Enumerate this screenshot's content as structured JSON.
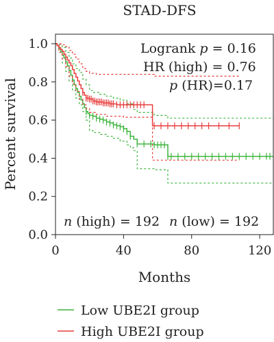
{
  "chart_data": {
    "type": "line",
    "title": "STAD-DFS",
    "xlabel": "Months",
    "ylabel": "Percent survival",
    "xlim": [
      0,
      128
    ],
    "ylim": [
      0,
      1.05
    ],
    "xticks": [
      0,
      40,
      80,
      120
    ],
    "yticks": [
      0.0,
      0.2,
      0.4,
      0.6,
      0.8,
      1.0
    ],
    "ytick_labels": [
      "0.0",
      "0.2",
      "0.4",
      "0.6",
      "0.8",
      "1.0"
    ],
    "annotations": {
      "logrank_prefix": "Logrank ",
      "logrank_p": "p",
      "logrank_value": " = 0.16",
      "hr": "HR (high) = 0.76",
      "phr_p": "p",
      "phr_value": " (HR)=0.17",
      "n_high_n": "n",
      "n_high_value": " (high) = 192",
      "n_low_n": "n",
      "n_low_value": " (low) = 192"
    },
    "legend_position": "bottom",
    "series": [
      {
        "name": "Low UBE2I group",
        "color": "#3cb43c",
        "survival": [
          [
            0,
            1.0
          ],
          [
            1,
            0.99
          ],
          [
            2,
            0.975
          ],
          [
            3,
            0.96
          ],
          [
            4,
            0.94
          ],
          [
            5,
            0.925
          ],
          [
            6,
            0.905
          ],
          [
            7,
            0.885
          ],
          [
            8,
            0.86
          ],
          [
            9,
            0.835
          ],
          [
            10,
            0.81
          ],
          [
            11,
            0.785
          ],
          [
            12,
            0.765
          ],
          [
            13,
            0.745
          ],
          [
            14,
            0.725
          ],
          [
            15,
            0.705
          ],
          [
            16,
            0.685
          ],
          [
            17,
            0.665
          ],
          [
            18,
            0.645
          ],
          [
            19,
            0.635
          ],
          [
            20,
            0.625
          ],
          [
            22,
            0.62
          ],
          [
            24,
            0.61
          ],
          [
            26,
            0.605
          ],
          [
            28,
            0.6
          ],
          [
            30,
            0.59
          ],
          [
            32,
            0.585
          ],
          [
            34,
            0.575
          ],
          [
            36,
            0.57
          ],
          [
            38,
            0.565
          ],
          [
            40,
            0.555
          ],
          [
            42,
            0.54
          ],
          [
            44,
            0.515
          ],
          [
            46,
            0.5
          ],
          [
            48,
            0.475
          ],
          [
            56,
            0.475
          ],
          [
            58,
            0.47
          ],
          [
            64,
            0.47
          ],
          [
            66,
            0.41
          ],
          [
            128,
            0.41
          ]
        ],
        "ci_upper": [
          [
            0,
            1.0
          ],
          [
            2,
            0.995
          ],
          [
            4,
            0.98
          ],
          [
            6,
            0.955
          ],
          [
            8,
            0.925
          ],
          [
            10,
            0.895
          ],
          [
            12,
            0.87
          ],
          [
            14,
            0.85
          ],
          [
            16,
            0.815
          ],
          [
            18,
            0.785
          ],
          [
            20,
            0.755
          ],
          [
            22,
            0.745
          ],
          [
            26,
            0.735
          ],
          [
            30,
            0.725
          ],
          [
            34,
            0.715
          ],
          [
            38,
            0.705
          ],
          [
            42,
            0.685
          ],
          [
            46,
            0.655
          ],
          [
            48,
            0.64
          ],
          [
            56,
            0.64
          ],
          [
            58,
            0.625
          ],
          [
            64,
            0.625
          ],
          [
            66,
            0.61
          ],
          [
            128,
            0.61
          ]
        ],
        "ci_lower": [
          [
            0,
            1.0
          ],
          [
            2,
            0.955
          ],
          [
            4,
            0.9
          ],
          [
            6,
            0.855
          ],
          [
            8,
            0.805
          ],
          [
            10,
            0.755
          ],
          [
            12,
            0.715
          ],
          [
            14,
            0.68
          ],
          [
            16,
            0.645
          ],
          [
            18,
            0.6
          ],
          [
            20,
            0.545
          ],
          [
            22,
            0.535
          ],
          [
            26,
            0.525
          ],
          [
            30,
            0.515
          ],
          [
            34,
            0.505
          ],
          [
            38,
            0.49
          ],
          [
            42,
            0.47
          ],
          [
            44,
            0.455
          ],
          [
            46,
            0.44
          ],
          [
            48,
            0.345
          ],
          [
            56,
            0.345
          ],
          [
            58,
            0.34
          ],
          [
            64,
            0.34
          ],
          [
            66,
            0.27
          ],
          [
            128,
            0.27
          ]
        ],
        "censors": [
          18,
          20,
          22,
          24,
          26,
          28,
          30,
          32,
          34,
          36,
          38,
          40,
          42,
          44,
          48,
          52,
          56,
          58,
          60,
          62,
          64,
          66,
          68,
          72,
          76,
          80,
          84,
          88,
          92,
          96,
          100,
          104,
          108,
          112,
          116,
          120,
          124,
          126
        ]
      },
      {
        "name": "High UBE2I group",
        "color": "#e83c3c",
        "survival": [
          [
            0,
            1.0
          ],
          [
            1,
            0.99
          ],
          [
            2,
            0.98
          ],
          [
            3,
            0.97
          ],
          [
            4,
            0.96
          ],
          [
            5,
            0.945
          ],
          [
            6,
            0.93
          ],
          [
            7,
            0.915
          ],
          [
            8,
            0.9
          ],
          [
            9,
            0.885
          ],
          [
            10,
            0.865
          ],
          [
            11,
            0.845
          ],
          [
            12,
            0.825
          ],
          [
            13,
            0.805
          ],
          [
            14,
            0.785
          ],
          [
            15,
            0.765
          ],
          [
            16,
            0.745
          ],
          [
            17,
            0.73
          ],
          [
            18,
            0.715
          ],
          [
            20,
            0.71
          ],
          [
            22,
            0.7
          ],
          [
            24,
            0.695
          ],
          [
            28,
            0.69
          ],
          [
            32,
            0.685
          ],
          [
            36,
            0.68
          ],
          [
            40,
            0.68
          ],
          [
            56,
            0.68
          ],
          [
            57,
            0.57
          ],
          [
            108,
            0.57
          ]
        ],
        "ci_upper": [
          [
            0,
            1.0
          ],
          [
            2,
            1.0
          ],
          [
            4,
            0.995
          ],
          [
            6,
            0.985
          ],
          [
            8,
            0.965
          ],
          [
            10,
            0.945
          ],
          [
            12,
            0.92
          ],
          [
            14,
            0.895
          ],
          [
            16,
            0.87
          ],
          [
            18,
            0.855
          ],
          [
            20,
            0.845
          ],
          [
            24,
            0.84
          ],
          [
            30,
            0.84
          ],
          [
            40,
            0.84
          ],
          [
            56,
            0.84
          ],
          [
            58,
            0.83
          ],
          [
            108,
            0.83
          ]
        ],
        "ci_lower": [
          [
            0,
            1.0
          ],
          [
            2,
            0.955
          ],
          [
            4,
            0.92
          ],
          [
            6,
            0.88
          ],
          [
            8,
            0.83
          ],
          [
            10,
            0.79
          ],
          [
            12,
            0.75
          ],
          [
            14,
            0.71
          ],
          [
            16,
            0.68
          ],
          [
            18,
            0.66
          ],
          [
            20,
            0.64
          ],
          [
            24,
            0.63
          ],
          [
            30,
            0.62
          ],
          [
            40,
            0.615
          ],
          [
            56,
            0.615
          ],
          [
            57,
            0.39
          ],
          [
            108,
            0.39
          ]
        ],
        "censors": [
          16,
          18,
          19,
          20,
          21,
          22,
          23,
          24,
          25,
          26,
          27,
          28,
          29,
          30,
          31,
          32,
          33,
          34,
          36,
          38,
          40,
          42,
          44,
          46,
          48,
          50,
          52,
          58,
          62,
          66,
          70,
          74,
          78,
          82,
          86,
          90,
          96,
          102,
          108
        ]
      }
    ]
  }
}
